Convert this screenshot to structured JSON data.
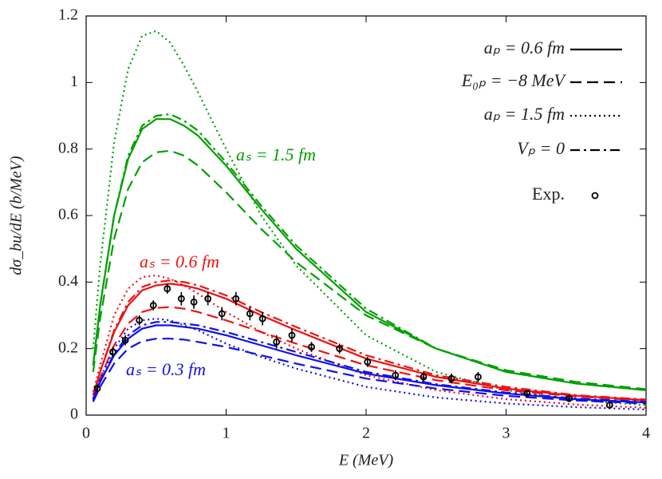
{
  "chart_data": {
    "type": "line",
    "xlabel": "E (MeV)",
    "ylabel": "dσ_bu/dE (b/MeV)",
    "xlim": [
      0,
      4
    ],
    "xticks": [
      0,
      1,
      2,
      3,
      4
    ],
    "ylim": [
      0,
      1.2
    ],
    "yticks": [
      0,
      0.2,
      0.4,
      0.6,
      0.8,
      1,
      1.2
    ],
    "grid": false,
    "x": [
      0.05,
      0.1,
      0.2,
      0.3,
      0.4,
      0.5,
      0.6,
      0.7,
      0.8,
      1.0,
      1.25,
      1.5,
      2.0,
      2.5,
      3.0,
      3.5,
      4.0
    ],
    "series": [
      {
        "color": "#00a000",
        "dash": "solid",
        "values": [
          0.15,
          0.33,
          0.6,
          0.77,
          0.86,
          0.89,
          0.89,
          0.87,
          0.84,
          0.75,
          0.62,
          0.5,
          0.31,
          0.2,
          0.13,
          0.095,
          0.075
        ]
      },
      {
        "color": "#00a000",
        "dash": "dashed",
        "values": [
          0.13,
          0.29,
          0.53,
          0.68,
          0.76,
          0.79,
          0.795,
          0.78,
          0.75,
          0.67,
          0.56,
          0.46,
          0.3,
          0.2,
          0.135,
          0.1,
          0.078
        ]
      },
      {
        "color": "#00a000",
        "dash": "dotted",
        "values": [
          0.2,
          0.45,
          0.82,
          1.04,
          1.14,
          1.155,
          1.12,
          1.05,
          0.97,
          0.8,
          0.6,
          0.45,
          0.24,
          0.13,
          0.075,
          0.045,
          0.03
        ]
      },
      {
        "color": "#00a000",
        "dash": "dashdot",
        "values": [
          0.15,
          0.33,
          0.6,
          0.78,
          0.87,
          0.9,
          0.905,
          0.885,
          0.855,
          0.76,
          0.63,
          0.51,
          0.32,
          0.2,
          0.13,
          0.095,
          0.075
        ]
      },
      {
        "color": "#ee1111",
        "dash": "solid",
        "values": [
          0.06,
          0.13,
          0.25,
          0.33,
          0.375,
          0.39,
          0.395,
          0.39,
          0.38,
          0.35,
          0.3,
          0.255,
          0.17,
          0.115,
          0.08,
          0.058,
          0.045
        ]
      },
      {
        "color": "#ee1111",
        "dash": "dashed",
        "values": [
          0.05,
          0.11,
          0.21,
          0.275,
          0.31,
          0.322,
          0.325,
          0.32,
          0.31,
          0.285,
          0.25,
          0.215,
          0.15,
          0.105,
          0.075,
          0.056,
          0.044
        ]
      },
      {
        "color": "#ee1111",
        "dash": "dotted",
        "values": [
          0.07,
          0.15,
          0.3,
          0.38,
          0.415,
          0.42,
          0.41,
          0.39,
          0.365,
          0.31,
          0.25,
          0.2,
          0.12,
          0.075,
          0.048,
          0.032,
          0.022
        ]
      },
      {
        "color": "#ee1111",
        "dash": "dashdot",
        "values": [
          0.06,
          0.13,
          0.255,
          0.34,
          0.385,
          0.4,
          0.405,
          0.4,
          0.39,
          0.36,
          0.31,
          0.265,
          0.18,
          0.12,
          0.085,
          0.06,
          0.047
        ]
      },
      {
        "color": "#1010ee",
        "dash": "solid",
        "values": [
          0.045,
          0.1,
          0.18,
          0.23,
          0.26,
          0.27,
          0.27,
          0.265,
          0.26,
          0.24,
          0.21,
          0.18,
          0.125,
          0.09,
          0.065,
          0.048,
          0.038
        ]
      },
      {
        "color": "#1010ee",
        "dash": "dashed",
        "values": [
          0.04,
          0.085,
          0.155,
          0.2,
          0.222,
          0.23,
          0.23,
          0.227,
          0.22,
          0.205,
          0.18,
          0.155,
          0.11,
          0.08,
          0.058,
          0.044,
          0.035
        ]
      },
      {
        "color": "#1010ee",
        "dash": "dotted",
        "values": [
          0.05,
          0.11,
          0.2,
          0.26,
          0.285,
          0.29,
          0.285,
          0.27,
          0.255,
          0.215,
          0.175,
          0.14,
          0.085,
          0.053,
          0.035,
          0.024,
          0.017
        ]
      },
      {
        "color": "#1010ee",
        "dash": "dashdot",
        "values": [
          0.045,
          0.1,
          0.185,
          0.24,
          0.27,
          0.28,
          0.28,
          0.275,
          0.27,
          0.25,
          0.22,
          0.19,
          0.13,
          0.093,
          0.068,
          0.05,
          0.04
        ]
      }
    ],
    "points": {
      "name": "Exp.",
      "color": "#000000",
      "x": [
        0.08,
        0.19,
        0.28,
        0.38,
        0.48,
        0.58,
        0.68,
        0.77,
        0.87,
        0.97,
        1.07,
        1.17,
        1.26,
        1.36,
        1.47,
        1.61,
        1.81,
        2.01,
        2.21,
        2.41,
        2.61,
        2.8,
        3.15,
        3.45,
        3.74
      ],
      "values": [
        0.08,
        0.19,
        0.225,
        0.285,
        0.33,
        0.38,
        0.35,
        0.34,
        0.35,
        0.305,
        0.35,
        0.305,
        0.29,
        0.22,
        0.24,
        0.205,
        0.2,
        0.16,
        0.12,
        0.115,
        0.11,
        0.115,
        0.065,
        0.05,
        0.03
      ],
      "errors": [
        0.01,
        0.015,
        0.015,
        0.015,
        0.015,
        0.015,
        0.02,
        0.02,
        0.02,
        0.02,
        0.02,
        0.02,
        0.02,
        0.02,
        0.02,
        0.015,
        0.015,
        0.015,
        0.015,
        0.015,
        0.015,
        0.015,
        0.01,
        0.01,
        0.01
      ]
    },
    "annotations": [
      {
        "label": "aₛ = 1.5 fm",
        "color": "#00a000"
      },
      {
        "label": "aₛ = 0.6 fm",
        "color": "#ee1111"
      },
      {
        "label": "aₛ = 0.3 fm",
        "color": "#1010ee"
      }
    ],
    "legend": {
      "position": "upper right",
      "entries": [
        {
          "label": "aₚ = 0.6 fm",
          "dash": "solid"
        },
        {
          "label": "E₀ₚ = −8 MeV",
          "dash": "dashed"
        },
        {
          "label": "aₚ = 1.5 fm",
          "dash": "dotted"
        },
        {
          "label": "Vₚ = 0",
          "dash": "dashdot"
        }
      ]
    }
  }
}
